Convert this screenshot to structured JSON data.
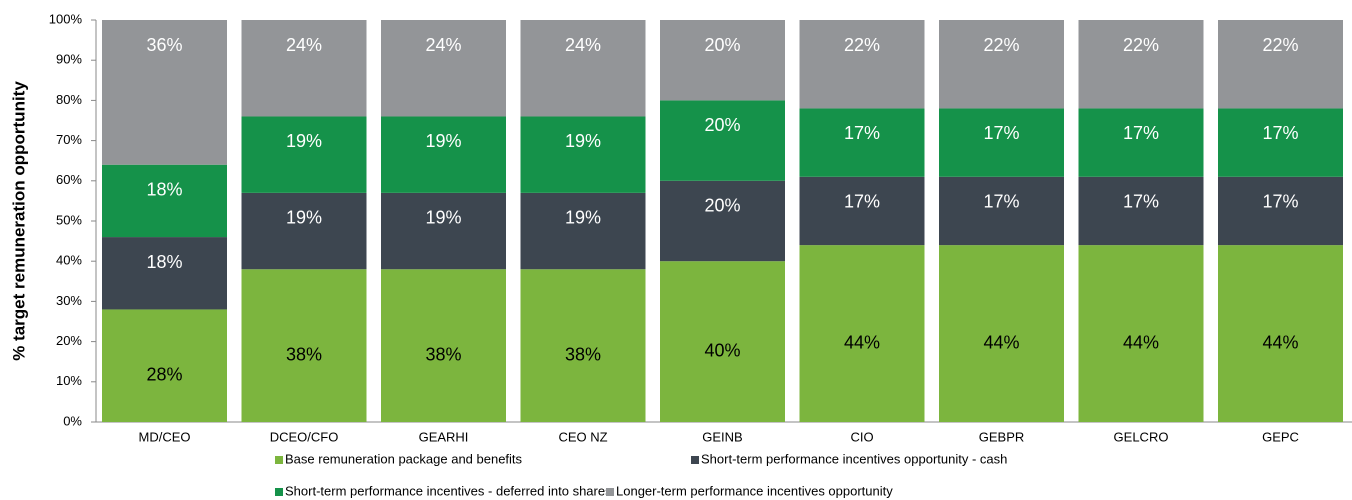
{
  "chart_data": {
    "type": "stacked_bar",
    "ylabel": "% target remuneration opportunity",
    "categories": [
      "MD/CEO",
      "DCEO/CFO",
      "GEARHI",
      "CEO NZ",
      "GEINB",
      "CIO",
      "GEBPR",
      "GELCRO",
      "GEPC"
    ],
    "series": [
      {
        "name": "Base remuneration package and benefits",
        "color": "#7cb53e",
        "label_color": "#000000",
        "values": [
          28,
          38,
          38,
          38,
          40,
          44,
          44,
          44,
          44
        ],
        "value_labels": [
          "28%",
          "38%",
          "38%",
          "38%",
          "40%",
          "44%",
          "44%",
          "44%",
          "44%"
        ]
      },
      {
        "name": "Short-term performance incentives opportunity - cash",
        "color": "#3d4650",
        "label_color": "#ffffff",
        "values": [
          18,
          19,
          19,
          19,
          20,
          17,
          17,
          17,
          17
        ],
        "value_labels": [
          "18%",
          "19%",
          "19%",
          "19%",
          "20%",
          "17%",
          "17%",
          "17%",
          "17%"
        ]
      },
      {
        "name": "Short-term performance incentives - deferred into shares",
        "color": "#15924a",
        "label_color": "#ffffff",
        "values": [
          18,
          19,
          19,
          19,
          20,
          17,
          17,
          17,
          17
        ],
        "value_labels": [
          "18%",
          "19%",
          "19%",
          "19%",
          "20%",
          "17%",
          "17%",
          "17%",
          "17%"
        ]
      },
      {
        "name": "Longer-term performance incentives opportunity",
        "color": "#939598",
        "label_color": "#ffffff",
        "values": [
          36,
          24,
          24,
          24,
          20,
          22,
          22,
          22,
          22
        ],
        "value_labels": [
          "36%",
          "24%",
          "24%",
          "24%",
          "20%",
          "22%",
          "22%",
          "22%",
          "22%"
        ]
      }
    ],
    "ylim": [
      0,
      100
    ],
    "yticks": [
      {
        "value": 0,
        "label": "0%"
      },
      {
        "value": 10,
        "label": "10%"
      },
      {
        "value": 20,
        "label": "20%"
      },
      {
        "value": 30,
        "label": "30%"
      },
      {
        "value": 40,
        "label": "40%"
      },
      {
        "value": 50,
        "label": "50%"
      },
      {
        "value": 60,
        "label": "60%"
      },
      {
        "value": 70,
        "label": "70%"
      },
      {
        "value": 80,
        "label": "80%"
      },
      {
        "value": 90,
        "label": "90%"
      },
      {
        "value": 100,
        "label": "100%"
      }
    ],
    "grid": false
  }
}
